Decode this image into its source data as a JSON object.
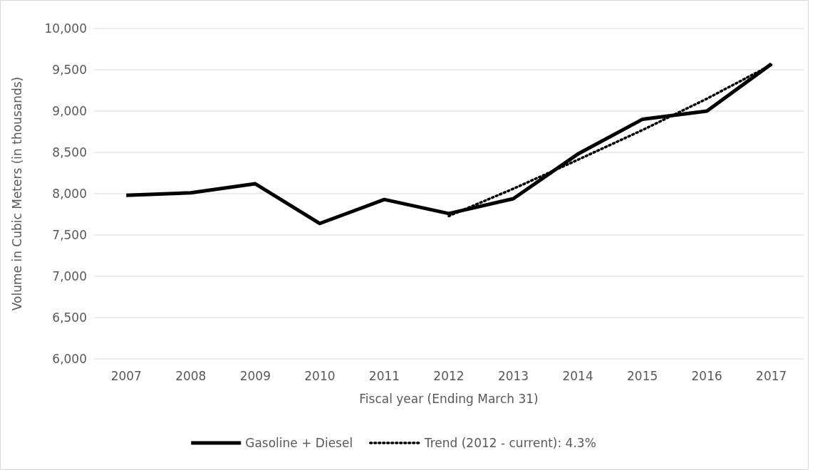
{
  "chart_data": {
    "type": "line",
    "xlabel": "Fiscal year (Ending March 31)",
    "ylabel": "Volume in Cubic Meters (in thousands)",
    "categories": [
      "2007",
      "2008",
      "2009",
      "2010",
      "2011",
      "2012",
      "2013",
      "2014",
      "2015",
      "2016",
      "2017"
    ],
    "series": [
      {
        "name": "Gasoline + Diesel",
        "color": "#000000",
        "line_style": "solid",
        "values": [
          7980,
          8010,
          8120,
          7640,
          7930,
          7760,
          7940,
          8480,
          8900,
          9000,
          9570
        ]
      },
      {
        "name": "Trend (2012 - current): 4.3%",
        "color": "#000000",
        "line_style": "dotted",
        "values": [
          null,
          null,
          null,
          null,
          null,
          7730,
          8060,
          8410,
          8770,
          9150,
          9560
        ]
      }
    ],
    "ylim": [
      6000,
      10000
    ],
    "yticks": [
      {
        "value": 6000,
        "label": "6,000"
      },
      {
        "value": 6500,
        "label": "6,500"
      },
      {
        "value": 7000,
        "label": "7,000"
      },
      {
        "value": 7500,
        "label": "7,500"
      },
      {
        "value": 8000,
        "label": "8,000"
      },
      {
        "value": 8500,
        "label": "8,500"
      },
      {
        "value": 9000,
        "label": "9,000"
      },
      {
        "value": 9500,
        "label": "9,500"
      },
      {
        "value": 10000,
        "label": "10,000"
      }
    ],
    "grid": "y",
    "legend": "bottom"
  }
}
